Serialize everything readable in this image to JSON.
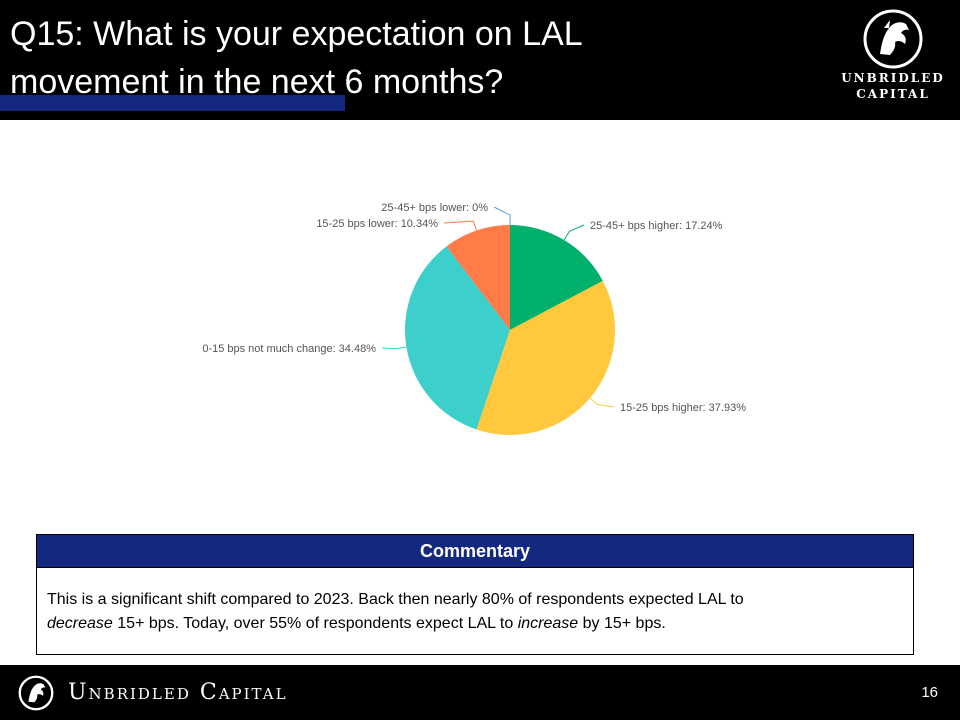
{
  "slide": {
    "title_line1": "Q15: What is your expectation on LAL",
    "title_line2": "movement in the next 6 months?",
    "page_number": "16",
    "accent_color": "#13287f"
  },
  "brand": {
    "logo_line1": "UNBRIDLED",
    "logo_line2": "CAPITAL",
    "footer_name": "Unbridled Capital",
    "icon": "horse-head-logo"
  },
  "chart_data": {
    "type": "pie",
    "start_angle_deg": 0,
    "direction": "clockwise",
    "slices": [
      {
        "label": "25-45+ bps higher",
        "value": 17.24,
        "display": "25-45+ bps higher: 17.24%",
        "color": "#00b06b"
      },
      {
        "label": "15-25 bps higher",
        "value": 37.93,
        "display": "15-25 bps higher: 37.93%",
        "color": "#ffc83d"
      },
      {
        "label": "0-15 bps not much change",
        "value": 34.48,
        "display": "0-15 bps not much change: 34.48%",
        "color": "#3ccfcb"
      },
      {
        "label": "15-25 bps lower",
        "value": 10.34,
        "display": "15-25 bps lower: 10.34%",
        "color": "#ff7b47"
      },
      {
        "label": "25-45+ bps lower",
        "value": 0,
        "display": "25-45+ bps lower: 0%",
        "color": "#5b9bd5"
      }
    ]
  },
  "commentary": {
    "heading": "Commentary",
    "text_1": "This is a significant shift compared to 2023. Back then nearly 80% of respondents expected LAL to",
    "text_em_1": "decrease",
    "text_2": " 15+ bps. Today, over 55% of respondents expect LAL to ",
    "text_em_2": "increase",
    "text_3": " by 15+ bps."
  }
}
